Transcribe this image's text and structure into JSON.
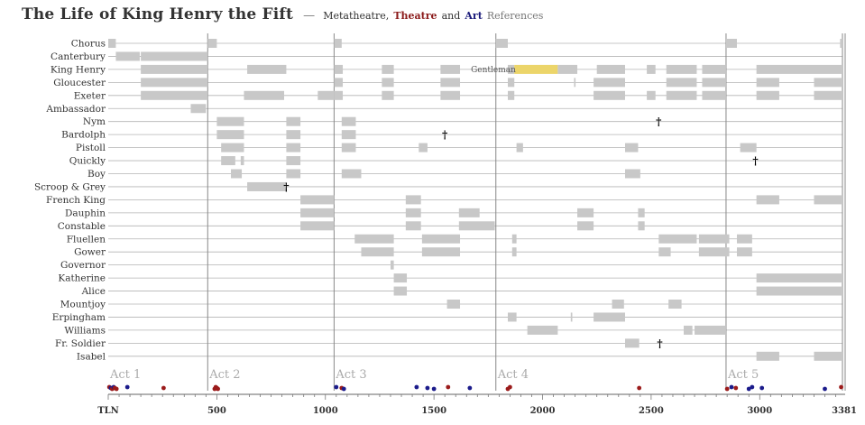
{
  "header": {
    "title": "The Life of King Henry the Fift",
    "separator": "—",
    "sub_meta": "Metatheatre,",
    "sub_theatre": "Theatre",
    "sub_and": "and",
    "sub_art": "Art",
    "sub_rest": "References"
  },
  "colors": {
    "bar": "#c8c8c8",
    "highlight": "#ecd56a",
    "theatre": "#9b1b1b",
    "art": "#1b1b8b",
    "act_line": "#888888",
    "row_line": "#b4b4b4",
    "act_label": "#aaaaaa"
  },
  "chart_data": {
    "type": "timeline",
    "x_label": "TLN",
    "x_range": [
      0,
      3381
    ],
    "x_ticks": [
      500,
      1000,
      1500,
      2000,
      2500,
      3000
    ],
    "end_label": "3381",
    "acts": [
      {
        "label": "Act 1",
        "start": 0
      },
      {
        "label": "Act 2",
        "start": 458
      },
      {
        "label": "Act 3",
        "start": 1040
      },
      {
        "label": "Act 4",
        "start": 1785
      },
      {
        "label": "Act 5",
        "start": 2845
      }
    ],
    "characters": [
      {
        "name": "Chorus",
        "spans": [
          [
            0,
            35
          ],
          [
            458,
            500
          ],
          [
            1040,
            1075
          ],
          [
            1785,
            1840
          ],
          [
            2845,
            2895
          ],
          [
            3370,
            3381
          ]
        ]
      },
      {
        "name": "Canterbury",
        "spans": [
          [
            35,
            145
          ],
          [
            150,
            458
          ]
        ]
      },
      {
        "name": "King Henry",
        "spans": [
          [
            150,
            458
          ],
          [
            640,
            820
          ],
          [
            1040,
            1080
          ],
          [
            1260,
            1315
          ],
          [
            1530,
            1620
          ],
          [
            1840,
            1870
          ],
          [
            1870,
            2070,
            "hl"
          ],
          [
            2070,
            2160
          ],
          [
            2250,
            2380
          ],
          [
            2480,
            2520
          ],
          [
            2570,
            2710
          ],
          [
            2735,
            2845
          ],
          [
            2985,
            3381
          ]
        ]
      },
      {
        "name": "Gloucester",
        "spans": [
          [
            150,
            458
          ],
          [
            1040,
            1080
          ],
          [
            1260,
            1315
          ],
          [
            1530,
            1620
          ],
          [
            1840,
            1870
          ],
          [
            2145,
            2152
          ],
          [
            2235,
            2380
          ],
          [
            2570,
            2710
          ],
          [
            2735,
            2845
          ],
          [
            2985,
            3090
          ],
          [
            3250,
            3381
          ]
        ]
      },
      {
        "name": "Exeter",
        "spans": [
          [
            150,
            458
          ],
          [
            625,
            810
          ],
          [
            965,
            1040
          ],
          [
            1040,
            1080
          ],
          [
            1260,
            1315
          ],
          [
            1530,
            1620
          ],
          [
            1840,
            1870
          ],
          [
            2235,
            2380
          ],
          [
            2480,
            2520
          ],
          [
            2570,
            2710
          ],
          [
            2735,
            2845
          ],
          [
            2985,
            3090
          ],
          [
            3250,
            3381
          ]
        ]
      },
      {
        "name": "Ambassador",
        "spans": [
          [
            380,
            450
          ]
        ]
      },
      {
        "name": "Nym",
        "spans": [
          [
            500,
            625
          ],
          [
            820,
            885
          ],
          [
            1075,
            1140
          ]
        ],
        "death": 2535
      },
      {
        "name": "Bardolph",
        "spans": [
          [
            500,
            625
          ],
          [
            820,
            885
          ],
          [
            1075,
            1140
          ]
        ],
        "death": 1550
      },
      {
        "name": "Pistoll",
        "spans": [
          [
            520,
            625
          ],
          [
            820,
            885
          ],
          [
            1075,
            1140
          ],
          [
            1430,
            1470
          ],
          [
            1880,
            1910
          ],
          [
            2380,
            2440
          ],
          [
            2910,
            2985
          ]
        ]
      },
      {
        "name": "Quickly",
        "spans": [
          [
            520,
            585
          ],
          [
            610,
            625
          ],
          [
            820,
            885
          ]
        ],
        "death": 2980
      },
      {
        "name": "Boy",
        "spans": [
          [
            565,
            615
          ],
          [
            820,
            885
          ],
          [
            1075,
            1165
          ],
          [
            2380,
            2450
          ]
        ]
      },
      {
        "name": "Scroop & Grey",
        "spans": [
          [
            640,
            820
          ]
        ],
        "death": 820
      },
      {
        "name": "French King",
        "spans": [
          [
            885,
            1040
          ],
          [
            1370,
            1440
          ],
          [
            2985,
            3090
          ],
          [
            3250,
            3381
          ]
        ]
      },
      {
        "name": "Dauphin",
        "spans": [
          [
            885,
            1040
          ],
          [
            1370,
            1440
          ],
          [
            1615,
            1710
          ],
          [
            2160,
            2235
          ],
          [
            2440,
            2470
          ]
        ]
      },
      {
        "name": "Constable",
        "spans": [
          [
            885,
            1040
          ],
          [
            1370,
            1440
          ],
          [
            1615,
            1780
          ],
          [
            2160,
            2235
          ],
          [
            2440,
            2470
          ]
        ]
      },
      {
        "name": "Fluellen",
        "spans": [
          [
            1135,
            1315
          ],
          [
            1445,
            1620
          ],
          [
            1860,
            1880
          ],
          [
            2535,
            2710
          ],
          [
            2720,
            2860
          ],
          [
            2895,
            2965
          ]
        ]
      },
      {
        "name": "Gower",
        "spans": [
          [
            1165,
            1315
          ],
          [
            1445,
            1620
          ],
          [
            1860,
            1880
          ],
          [
            2535,
            2590
          ],
          [
            2720,
            2860
          ],
          [
            2895,
            2965
          ]
        ]
      },
      {
        "name": "Governor",
        "spans": [
          [
            1300,
            1315
          ]
        ]
      },
      {
        "name": "Katherine",
        "spans": [
          [
            1315,
            1375
          ],
          [
            2985,
            3381
          ]
        ]
      },
      {
        "name": "Alice",
        "spans": [
          [
            1315,
            1375
          ],
          [
            2985,
            3381
          ]
        ]
      },
      {
        "name": "Mountjoy",
        "spans": [
          [
            1560,
            1620
          ],
          [
            2320,
            2375
          ],
          [
            2580,
            2640
          ]
        ]
      },
      {
        "name": "Erpingham",
        "spans": [
          [
            1840,
            1880
          ],
          [
            2130,
            2137
          ],
          [
            2235,
            2380
          ]
        ]
      },
      {
        "name": "Williams",
        "spans": [
          [
            1930,
            2070
          ],
          [
            2650,
            2690
          ],
          [
            2700,
            2845
          ]
        ]
      },
      {
        "name": "Fr. Soldier",
        "spans": [
          [
            2380,
            2445
          ]
        ],
        "death": 2540
      },
      {
        "name": "Isabel",
        "spans": [
          [
            2985,
            3090
          ],
          [
            3250,
            3381
          ]
        ]
      }
    ],
    "annotations": [
      {
        "text": "Gentleman",
        "x": 1670,
        "row": "King Henry"
      }
    ],
    "references": [
      {
        "x": 5,
        "kind": "theatre"
      },
      {
        "x": 12,
        "kind": "art"
      },
      {
        "x": 18,
        "kind": "theatre"
      },
      {
        "x": 25,
        "kind": "art"
      },
      {
        "x": 30,
        "kind": "theatre"
      },
      {
        "x": 38,
        "kind": "theatre"
      },
      {
        "x": 88,
        "kind": "art"
      },
      {
        "x": 255,
        "kind": "theatre"
      },
      {
        "x": 490,
        "kind": "theatre"
      },
      {
        "x": 495,
        "kind": "theatre"
      },
      {
        "x": 500,
        "kind": "theatre"
      },
      {
        "x": 505,
        "kind": "theatre"
      },
      {
        "x": 1050,
        "kind": "art"
      },
      {
        "x": 1075,
        "kind": "theatre"
      },
      {
        "x": 1085,
        "kind": "art"
      },
      {
        "x": 1420,
        "kind": "art"
      },
      {
        "x": 1470,
        "kind": "art"
      },
      {
        "x": 1500,
        "kind": "art"
      },
      {
        "x": 1565,
        "kind": "theatre"
      },
      {
        "x": 1665,
        "kind": "art"
      },
      {
        "x": 1840,
        "kind": "theatre"
      },
      {
        "x": 1850,
        "kind": "theatre"
      },
      {
        "x": 2445,
        "kind": "theatre"
      },
      {
        "x": 2850,
        "kind": "theatre"
      },
      {
        "x": 2870,
        "kind": "art"
      },
      {
        "x": 2890,
        "kind": "theatre"
      },
      {
        "x": 2950,
        "kind": "art"
      },
      {
        "x": 2965,
        "kind": "art"
      },
      {
        "x": 3010,
        "kind": "art"
      },
      {
        "x": 3300,
        "kind": "art"
      },
      {
        "x": 3375,
        "kind": "theatre"
      }
    ]
  }
}
